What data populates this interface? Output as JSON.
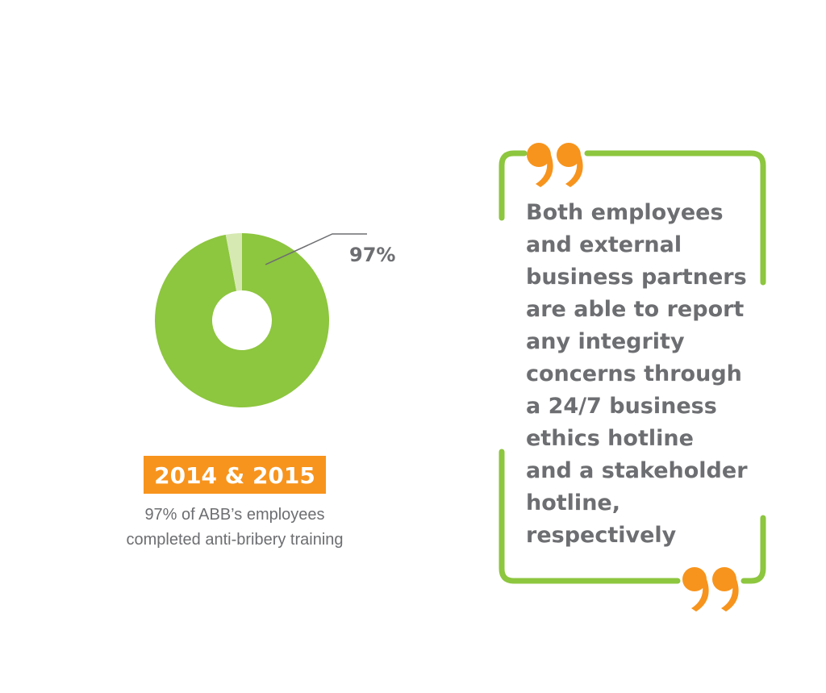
{
  "chart_data": {
    "type": "pie",
    "values": [
      97,
      3
    ],
    "value_labels": [
      "97%",
      null
    ],
    "colors": [
      "#8dc63f",
      "#d7e9b3"
    ],
    "donut": true,
    "badge": "2014 & 2015",
    "caption": [
      "97% of ABB’s employees",
      "completed anti-bribery training"
    ]
  },
  "quote": {
    "lines": [
      "Both employees",
      "and external",
      "business partners",
      "are able to report",
      "any integrity",
      "concerns through",
      "a 24/7 business",
      "ethics hotline",
      "and a stakeholder",
      "hotline,",
      "respectively"
    ]
  }
}
